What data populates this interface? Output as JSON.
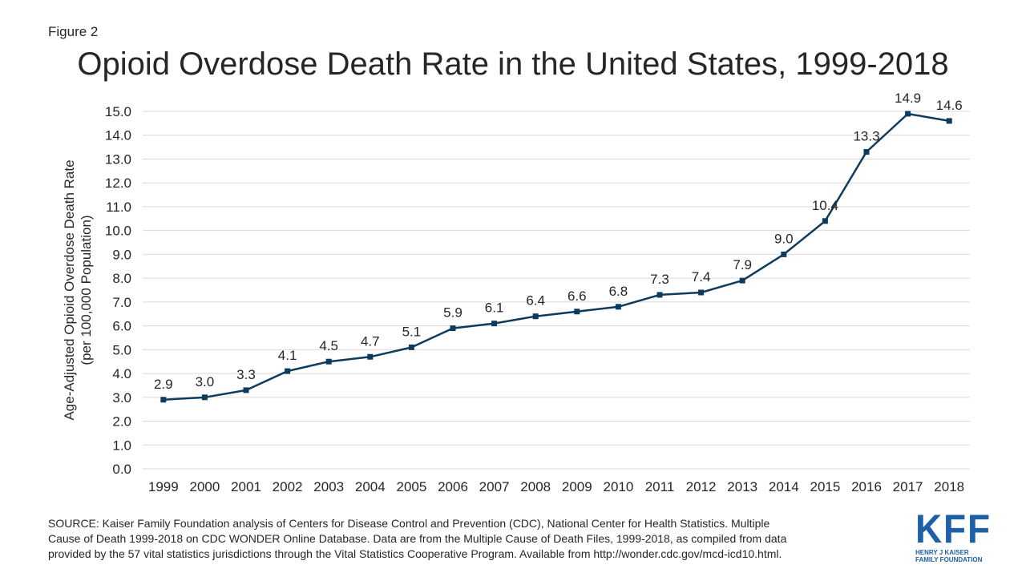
{
  "figure_label": "Figure 2",
  "logo": {
    "mark": "KFF",
    "line1": "HENRY J KAISER",
    "line2": "FAMILY FOUNDATION"
  },
  "source": {
    "line1": "SOURCE: Kaiser Family Foundation analysis of Centers for Disease Control and Prevention (CDC), National Center for Health Statistics. Multiple",
    "line2": "Cause of Death 1999-2018 on CDC WONDER Online Database. Data are from the Multiple Cause of Death Files, 1999-2018, as compiled from data",
    "line3": "provided by the 57 vital statistics jurisdictions through the Vital Statistics Cooperative Program. Available from http://wonder.cdc.gov/mcd-icd10.html."
  },
  "colors": {
    "series": "#0d3b5e",
    "grid": "#d9d9d9",
    "text": "#262626",
    "logo": "#1f5fa8"
  },
  "chart_data": {
    "type": "line",
    "title": "Opioid Overdose Death Rate in the United States, 1999-2018",
    "ylabel_line1": "Age-Adjusted Opioid Overdose Death Rate",
    "ylabel_line2": "(per 100,000 Population)",
    "xlabel": "",
    "ylim": [
      0,
      15
    ],
    "ytick_step": 1,
    "yticks": [
      "0.0",
      "1.0",
      "2.0",
      "3.0",
      "4.0",
      "5.0",
      "6.0",
      "7.0",
      "8.0",
      "9.0",
      "10.0",
      "11.0",
      "12.0",
      "13.0",
      "14.0",
      "15.0"
    ],
    "grid": true,
    "categories": [
      "1999",
      "2000",
      "2001",
      "2002",
      "2003",
      "2004",
      "2005",
      "2006",
      "2007",
      "2008",
      "2009",
      "2010",
      "2011",
      "2012",
      "2013",
      "2014",
      "2015",
      "2016",
      "2017",
      "2018"
    ],
    "series": [
      {
        "name": "Opioid Overdose Death Rate",
        "values": [
          2.9,
          3.0,
          3.3,
          4.1,
          4.5,
          4.7,
          5.1,
          5.9,
          6.1,
          6.4,
          6.6,
          6.8,
          7.3,
          7.4,
          7.9,
          9.0,
          10.4,
          13.3,
          14.9,
          14.6
        ],
        "labels": [
          "2.9",
          "3.0",
          "3.3",
          "4.1",
          "4.5",
          "4.7",
          "5.1",
          "5.9",
          "6.1",
          "6.4",
          "6.6",
          "6.8",
          "7.3",
          "7.4",
          "7.9",
          "9.0",
          "10.4",
          "13.3",
          "14.9",
          "14.6"
        ]
      }
    ]
  }
}
